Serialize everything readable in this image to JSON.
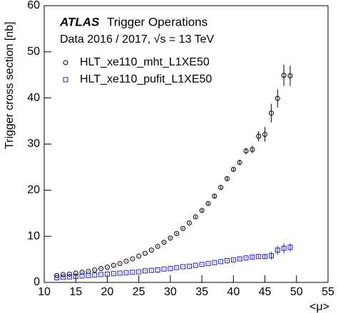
{
  "chart_data": {
    "type": "scatter",
    "title": "ATLAS",
    "subtitle": "Trigger Operations",
    "annotation": "Data 2016 / 2017, √s = 13 TeV",
    "x_label": "<μ>",
    "y_label": "Trigger cross section [nb]",
    "x": [
      12,
      13,
      14,
      15,
      16,
      17,
      18,
      19,
      20,
      21,
      22,
      23,
      24,
      25,
      26,
      27,
      28,
      29,
      30,
      31,
      32,
      33,
      34,
      35,
      36,
      37,
      38,
      39,
      40,
      41,
      42,
      43,
      44,
      45,
      46,
      47,
      48,
      49
    ],
    "series": [
      {
        "name": "HLT_xe110_mht_L1XE50",
        "color": "#000000",
        "marker": "circle",
        "values": [
          1.5,
          1.7,
          1.8,
          2.0,
          2.2,
          2.4,
          2.7,
          3.0,
          3.3,
          3.7,
          4.1,
          4.6,
          5.1,
          5.7,
          6.3,
          7.0,
          7.8,
          8.7,
          9.6,
          10.6,
          11.7,
          12.9,
          14.2,
          15.6,
          17.1,
          18.7,
          20.6,
          22.5,
          24.5,
          26.0,
          28.5,
          28.8,
          31.7,
          32.1,
          36.7,
          39.9,
          44.9,
          44.8
        ],
        "errors": [
          0.1,
          0.1,
          0.1,
          0.1,
          0.1,
          0.1,
          0.1,
          0.1,
          0.1,
          0.1,
          0.1,
          0.1,
          0.1,
          0.1,
          0.1,
          0.1,
          0.2,
          0.2,
          0.2,
          0.2,
          0.2,
          0.2,
          0.3,
          0.3,
          0.3,
          0.4,
          0.4,
          0.5,
          0.5,
          0.6,
          0.7,
          0.8,
          1.1,
          1.6,
          2.0,
          2.0,
          2.3,
          2.2
        ]
      },
      {
        "name": "HLT_xe110_pufit_L1XE50",
        "color": "#1f1fd0",
        "marker": "square",
        "values": [
          1.0,
          1.1,
          1.2,
          1.3,
          1.4,
          1.5,
          1.6,
          1.7,
          1.8,
          1.9,
          2.0,
          2.1,
          2.2,
          2.3,
          2.5,
          2.6,
          2.7,
          2.9,
          3.0,
          3.2,
          3.4,
          3.5,
          3.7,
          3.9,
          4.1,
          4.3,
          4.5,
          4.7,
          4.9,
          5.1,
          5.3,
          5.5,
          5.6,
          5.6,
          5.8,
          7.0,
          7.4,
          7.6
        ],
        "errors": [
          0.1,
          0.1,
          0.1,
          0.1,
          0.1,
          0.1,
          0.1,
          0.1,
          0.1,
          0.1,
          0.1,
          0.1,
          0.1,
          0.1,
          0.1,
          0.1,
          0.1,
          0.1,
          0.1,
          0.1,
          0.1,
          0.1,
          0.1,
          0.1,
          0.1,
          0.1,
          0.1,
          0.2,
          0.2,
          0.2,
          0.2,
          0.3,
          0.3,
          0.5,
          0.8,
          1.0,
          1.1,
          0.9
        ]
      }
    ],
    "xlim": [
      10,
      55
    ],
    "ylim": [
      0,
      60
    ],
    "xticks": [
      10,
      15,
      20,
      25,
      30,
      35,
      40,
      45,
      50,
      55
    ],
    "yticks": [
      0,
      10,
      20,
      30,
      40,
      50,
      60
    ],
    "legend": "upper left"
  }
}
